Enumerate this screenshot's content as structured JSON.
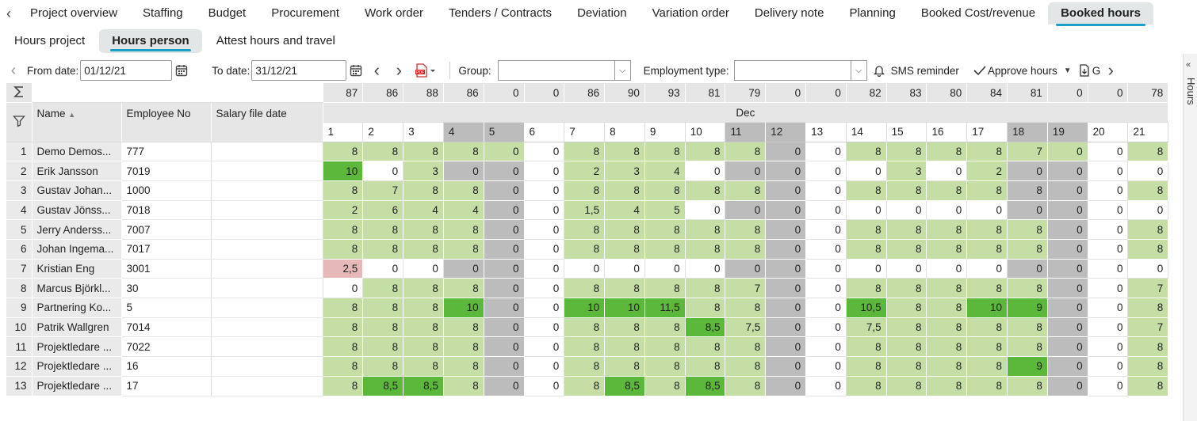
{
  "tabs": [
    "Project overview",
    "Staffing",
    "Budget",
    "Procurement",
    "Work order",
    "Tenders / Contracts",
    "Deviation",
    "Variation order",
    "Delivery note",
    "Planning",
    "Booked Cost/revenue",
    "Booked hours"
  ],
  "active_tab": 11,
  "subtabs": [
    "Hours project",
    "Hours person",
    "Attest hours and travel"
  ],
  "active_subtab": 1,
  "toolbar": {
    "from_label": "From date:",
    "from_value": "01/12/21",
    "to_label": "To date:",
    "to_value": "31/12/21",
    "group_label": "Group:",
    "group_value": "",
    "emp_label": "Employment type:",
    "emp_value": "",
    "sms_label": "SMS reminder",
    "approve_label": "Approve hours",
    "g_label": "G"
  },
  "rail_label": "Hours",
  "columns": {
    "name": "Name",
    "emp": "Employee No",
    "salary": "Salary file date"
  },
  "month": "Dec",
  "days": [
    {
      "d": "1",
      "t": "87",
      "we": false
    },
    {
      "d": "2",
      "t": "86",
      "we": false
    },
    {
      "d": "3",
      "t": "88",
      "we": false
    },
    {
      "d": "4",
      "t": "86",
      "we": true
    },
    {
      "d": "5",
      "t": "0",
      "we": true
    },
    {
      "d": "6",
      "t": "0",
      "we": false
    },
    {
      "d": "7",
      "t": "86",
      "we": false
    },
    {
      "d": "8",
      "t": "90",
      "we": false
    },
    {
      "d": "9",
      "t": "93",
      "we": false
    },
    {
      "d": "10",
      "t": "81",
      "we": false
    },
    {
      "d": "11",
      "t": "79",
      "we": true
    },
    {
      "d": "12",
      "t": "0",
      "we": true
    },
    {
      "d": "13",
      "t": "0",
      "we": false
    },
    {
      "d": "14",
      "t": "82",
      "we": false
    },
    {
      "d": "15",
      "t": "83",
      "we": false
    },
    {
      "d": "16",
      "t": "80",
      "we": false
    },
    {
      "d": "17",
      "t": "84",
      "we": false
    },
    {
      "d": "18",
      "t": "81",
      "we": true
    },
    {
      "d": "19",
      "t": "0",
      "we": true
    },
    {
      "d": "20",
      "t": "0",
      "we": false
    },
    {
      "d": "21",
      "t": "78",
      "we": false
    }
  ],
  "rows": [
    {
      "n": "1",
      "name": "Demo Demos...",
      "emp": "777",
      "v": [
        "8",
        "8",
        "8",
        "8",
        "0",
        "0",
        "8",
        "8",
        "8",
        "8",
        "8",
        "0",
        "0",
        "8",
        "8",
        "8",
        "8",
        "7",
        "0",
        "0",
        "8"
      ],
      "c": "gggggwgggggwwggggggwg"
    },
    {
      "n": "2",
      "name": "Erik Jansson",
      "emp": "7019",
      "v": [
        "10",
        "0",
        "3",
        "0",
        "0",
        "0",
        "2",
        "3",
        "4",
        "0",
        "0",
        "0",
        "0",
        "0",
        "3",
        "0",
        "2",
        "0",
        "0",
        "0",
        "0"
      ],
      "c": "Dwgwwwgggwwwwwgwgwwww"
    },
    {
      "n": "3",
      "name": "Gustav Johan...",
      "emp": "1000",
      "v": [
        "8",
        "7",
        "8",
        "8",
        "0",
        "0",
        "8",
        "8",
        "8",
        "8",
        "8",
        "0",
        "0",
        "8",
        "8",
        "8",
        "8",
        "8",
        "0",
        "0",
        "8"
      ],
      "c": "ggggwwgggggwwggggwwwg"
    },
    {
      "n": "4",
      "name": "Gustav Jönss...",
      "emp": "7018",
      "v": [
        "2",
        "6",
        "4",
        "4",
        "0",
        "0",
        "1,5",
        "4",
        "5",
        "0",
        "0",
        "0",
        "0",
        "0",
        "0",
        "0",
        "0",
        "0",
        "0",
        "0",
        "0"
      ],
      "c": "ggggwwgggwwwwwwwwwwww"
    },
    {
      "n": "5",
      "name": "Jerry Anderss...",
      "emp": "7007",
      "v": [
        "8",
        "8",
        "8",
        "8",
        "0",
        "0",
        "8",
        "8",
        "8",
        "8",
        "8",
        "0",
        "0",
        "8",
        "8",
        "8",
        "8",
        "8",
        "0",
        "0",
        "8"
      ],
      "c": "ggggwwgggggwwgggggwwg"
    },
    {
      "n": "6",
      "name": "Johan Ingema...",
      "emp": "7017",
      "v": [
        "8",
        "8",
        "8",
        "8",
        "0",
        "0",
        "8",
        "8",
        "8",
        "8",
        "8",
        "0",
        "0",
        "8",
        "8",
        "8",
        "8",
        "8",
        "0",
        "0",
        "8"
      ],
      "c": "ggggwwgggggwwgggggwwg"
    },
    {
      "n": "7",
      "name": "Kristian Eng",
      "emp": "3001",
      "v": [
        "2,5",
        "0",
        "0",
        "0",
        "0",
        "0",
        "0",
        "0",
        "0",
        "0",
        "0",
        "0",
        "0",
        "0",
        "0",
        "0",
        "0",
        "0",
        "0",
        "0",
        "0"
      ],
      "c": "Pwwwwwwwwwwwwwwwwwwww"
    },
    {
      "n": "8",
      "name": "Marcus Björkl...",
      "emp": "30",
      "v": [
        "0",
        "8",
        "8",
        "8",
        "0",
        "0",
        "8",
        "8",
        "8",
        "8",
        "7",
        "0",
        "0",
        "8",
        "8",
        "8",
        "8",
        "8",
        "0",
        "0",
        "7"
      ],
      "c": "wgggwwgggggwwgggggwwg"
    },
    {
      "n": "9",
      "name": "Partnering Ko...",
      "emp": "5",
      "v": [
        "8",
        "8",
        "8",
        "10",
        "0",
        "0",
        "10",
        "10",
        "11,5",
        "8",
        "8",
        "0",
        "0",
        "10,5",
        "8",
        "8",
        "10",
        "9",
        "0",
        "0",
        "8"
      ],
      "c": "gggDwwDDDggwwDggDDwwg"
    },
    {
      "n": "10",
      "name": "Patrik Wallgren",
      "emp": "7014",
      "v": [
        "8",
        "8",
        "8",
        "8",
        "0",
        "0",
        "8",
        "8",
        "8",
        "8,5",
        "7,5",
        "0",
        "0",
        "7,5",
        "8",
        "8",
        "8",
        "8",
        "0",
        "0",
        "7"
      ],
      "c": "ggggwwgggDgwwgggggwwg"
    },
    {
      "n": "11",
      "name": "Projektledare ...",
      "emp": "7022",
      "v": [
        "8",
        "8",
        "8",
        "8",
        "0",
        "0",
        "8",
        "8",
        "8",
        "8",
        "8",
        "0",
        "0",
        "8",
        "8",
        "8",
        "8",
        "8",
        "0",
        "0",
        "8"
      ],
      "c": "ggggwwgggggwwgggggwwg"
    },
    {
      "n": "12",
      "name": "Projektledare ...",
      "emp": "16",
      "v": [
        "8",
        "8",
        "8",
        "8",
        "0",
        "0",
        "8",
        "8",
        "8",
        "8",
        "8",
        "0",
        "0",
        "8",
        "8",
        "8",
        "8",
        "9",
        "0",
        "0",
        "8"
      ],
      "c": "ggggwwgggggwwggggDwwg"
    },
    {
      "n": "13",
      "name": "Projektledare ...",
      "emp": "17",
      "v": [
        "8",
        "8,5",
        "8,5",
        "8",
        "0",
        "0",
        "8",
        "8,5",
        "8",
        "8,5",
        "8",
        "0",
        "0",
        "8",
        "8",
        "8",
        "8",
        "8",
        "0",
        "0",
        "8"
      ],
      "c": "gDDgwwgDgDgwwgggggwwg"
    }
  ]
}
